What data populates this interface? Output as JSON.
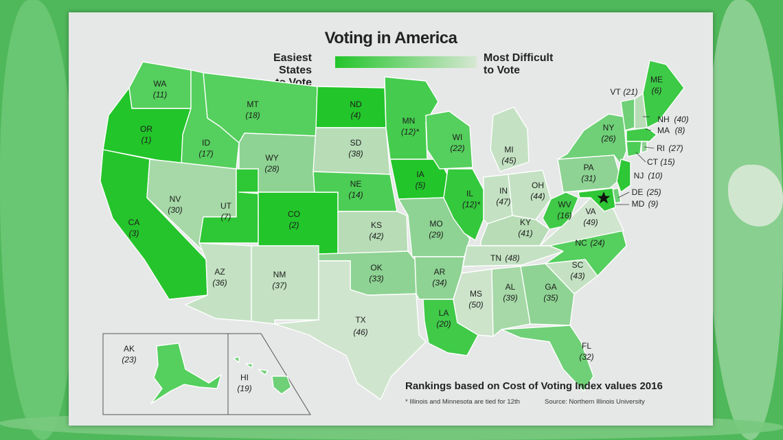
{
  "title": "Voting in America",
  "legend": {
    "left_line1": "Easiest States",
    "left_line2": "to Vote",
    "right_line1": "Most Difficult",
    "right_line2": "to Vote",
    "color_easiest": "#22c52a",
    "color_hardest": "#d6e7d2"
  },
  "caption": "Rankings based on Cost of Voting Index values 2016",
  "footnote": "* Illinois and Minnesota are tied for 12th",
  "source": "Source: Northern Illinois University",
  "capital_marker": "star",
  "states": [
    {
      "abbr": "WA",
      "rank": "(11)"
    },
    {
      "abbr": "OR",
      "rank": "(1)"
    },
    {
      "abbr": "CA",
      "rank": "(3)"
    },
    {
      "abbr": "ID",
      "rank": "(17)"
    },
    {
      "abbr": "NV",
      "rank": "(30)"
    },
    {
      "abbr": "MT",
      "rank": "(18)"
    },
    {
      "abbr": "WY",
      "rank": "(28)"
    },
    {
      "abbr": "UT",
      "rank": "(7)"
    },
    {
      "abbr": "AZ",
      "rank": "(36)"
    },
    {
      "abbr": "CO",
      "rank": "(2)"
    },
    {
      "abbr": "NM",
      "rank": "(37)"
    },
    {
      "abbr": "ND",
      "rank": "(4)"
    },
    {
      "abbr": "SD",
      "rank": "(38)"
    },
    {
      "abbr": "NE",
      "rank": "(14)"
    },
    {
      "abbr": "KS",
      "rank": "(42)"
    },
    {
      "abbr": "OK",
      "rank": "(33)"
    },
    {
      "abbr": "TX",
      "rank": "(46)"
    },
    {
      "abbr": "MN",
      "rank": "(12)*"
    },
    {
      "abbr": "IA",
      "rank": "(5)"
    },
    {
      "abbr": "MO",
      "rank": "(29)"
    },
    {
      "abbr": "AR",
      "rank": "(34)"
    },
    {
      "abbr": "LA",
      "rank": "(20)"
    },
    {
      "abbr": "WI",
      "rank": "(22)"
    },
    {
      "abbr": "IL",
      "rank": "(12)*"
    },
    {
      "abbr": "MI",
      "rank": "(45)"
    },
    {
      "abbr": "IN",
      "rank": "(47)"
    },
    {
      "abbr": "OH",
      "rank": "(44)"
    },
    {
      "abbr": "KY",
      "rank": "(41)"
    },
    {
      "abbr": "TN",
      "rank": "(48)"
    },
    {
      "abbr": "MS",
      "rank": "(50)"
    },
    {
      "abbr": "AL",
      "rank": "(39)"
    },
    {
      "abbr": "GA",
      "rank": "(35)"
    },
    {
      "abbr": "FL",
      "rank": "(32)"
    },
    {
      "abbr": "SC",
      "rank": "(43)"
    },
    {
      "abbr": "NC",
      "rank": "(24)"
    },
    {
      "abbr": "VA",
      "rank": "(49)"
    },
    {
      "abbr": "WV",
      "rank": "(16)"
    },
    {
      "abbr": "PA",
      "rank": "(31)"
    },
    {
      "abbr": "NY",
      "rank": "(26)"
    },
    {
      "abbr": "VT",
      "rank": "(21)"
    },
    {
      "abbr": "NH",
      "rank": "(40)"
    },
    {
      "abbr": "ME",
      "rank": "(6)"
    },
    {
      "abbr": "MA",
      "rank": "(8)"
    },
    {
      "abbr": "RI",
      "rank": "(27)"
    },
    {
      "abbr": "CT",
      "rank": "(15)"
    },
    {
      "abbr": "NJ",
      "rank": "(10)"
    },
    {
      "abbr": "DE",
      "rank": "(25)"
    },
    {
      "abbr": "MD",
      "rank": "(9)"
    },
    {
      "abbr": "AK",
      "rank": "(23)"
    },
    {
      "abbr": "HI",
      "rank": "(19)"
    }
  ]
}
